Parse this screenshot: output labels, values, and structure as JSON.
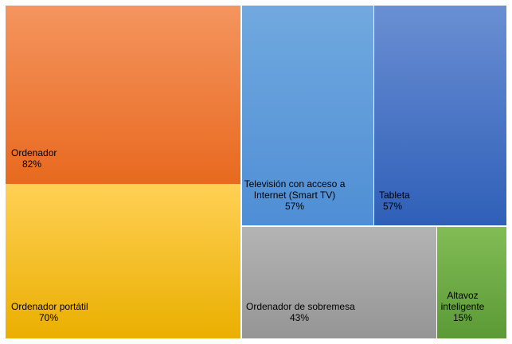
{
  "chart_data": {
    "type": "treemap",
    "title": "",
    "items": [
      {
        "name": "Ordenador",
        "label_lines": [
          "Ordenador"
        ],
        "value": 82,
        "value_label": "82%",
        "color_top": "#f4955f",
        "color_bottom": "#e8691f"
      },
      {
        "name": "Ordenador portátil",
        "label_lines": [
          "Ordenador portátil"
        ],
        "value": 70,
        "value_label": "70%",
        "color_top": "#ffd055",
        "color_bottom": "#eaaf00"
      },
      {
        "name": "Televisión con acceso a Internet (Smart TV)",
        "label_lines": [
          "Televisión con acceso a",
          "Internet (Smart TV)"
        ],
        "value": 57,
        "value_label": "57%",
        "color_top": "#71a9df",
        "color_bottom": "#4f8ed5"
      },
      {
        "name": "Tableta",
        "label_lines": [
          "Tableta"
        ],
        "value": 57,
        "value_label": "57%",
        "color_top": "#6a8fd3",
        "color_bottom": "#2f5fb8"
      },
      {
        "name": "Ordenador de sobremesa",
        "label_lines": [
          "Ordenador de sobremesa"
        ],
        "value": 43,
        "value_label": "43%",
        "color_top": "#b4b4b4",
        "color_bottom": "#959595"
      },
      {
        "name": "Altavoz inteligente",
        "label_lines": [
          "Altavoz",
          "inteligente"
        ],
        "value": 15,
        "value_label": "15%",
        "color_top": "#82bc55",
        "color_bottom": "#5b9a36"
      }
    ]
  }
}
